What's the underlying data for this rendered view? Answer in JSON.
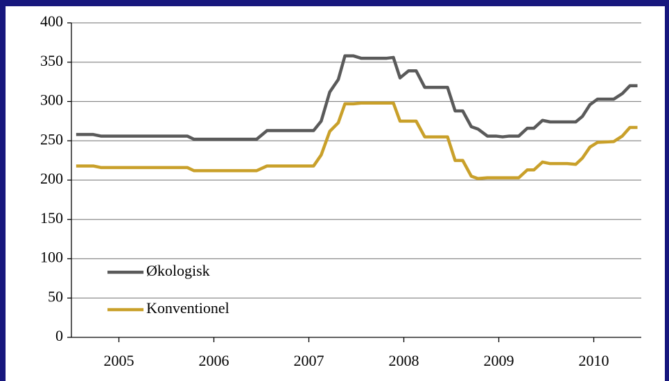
{
  "chart_data": {
    "type": "line",
    "x": [
      2004.55,
      2004.73,
      2004.81,
      2005.72,
      2005.79,
      2006.45,
      2006.56,
      2007.05,
      2007.13,
      2007.22,
      2007.31,
      2007.38,
      2007.47,
      2007.55,
      2007.82,
      2007.89,
      2007.96,
      2008.05,
      2008.13,
      2008.22,
      2008.46,
      2008.54,
      2008.62,
      2008.71,
      2008.78,
      2008.88,
      2008.97,
      2009.04,
      2009.11,
      2009.21,
      2009.3,
      2009.37,
      2009.46,
      2009.54,
      2009.72,
      2009.81,
      2009.88,
      2009.96,
      2010.04,
      2010.21,
      2010.3,
      2010.38,
      2010.46
    ],
    "series": [
      {
        "name": "Økologisk",
        "color": "#5a5a5a",
        "values": [
          258,
          258,
          256,
          256,
          252,
          252,
          263,
          263,
          275,
          312,
          328,
          358,
          358,
          355,
          355,
          356,
          330,
          339,
          339,
          318,
          318,
          288,
          288,
          268,
          265,
          256,
          256,
          255,
          256,
          256,
          266,
          266,
          276,
          274,
          274,
          274,
          281,
          296,
          303,
          303,
          310,
          320,
          320
        ]
      },
      {
        "name": "Konventionel",
        "color": "#c9a02a",
        "values": [
          218,
          218,
          216,
          216,
          212,
          212,
          218,
          218,
          232,
          262,
          273,
          297,
          297,
          298,
          298,
          298,
          275,
          275,
          275,
          255,
          255,
          225,
          225,
          205,
          202,
          203,
          203,
          203,
          203,
          203,
          213,
          213,
          223,
          221,
          221,
          220,
          228,
          242,
          248,
          249,
          256,
          267,
          267
        ]
      }
    ],
    "xlim": [
      2004.5,
      2010.5
    ],
    "xticks": [
      2005,
      2006,
      2007,
      2008,
      2009,
      2010
    ],
    "ylim": [
      0,
      400
    ],
    "yticks": [
      0,
      50,
      100,
      150,
      200,
      250,
      300,
      350,
      400
    ],
    "grid": true,
    "legend": "lower left"
  }
}
